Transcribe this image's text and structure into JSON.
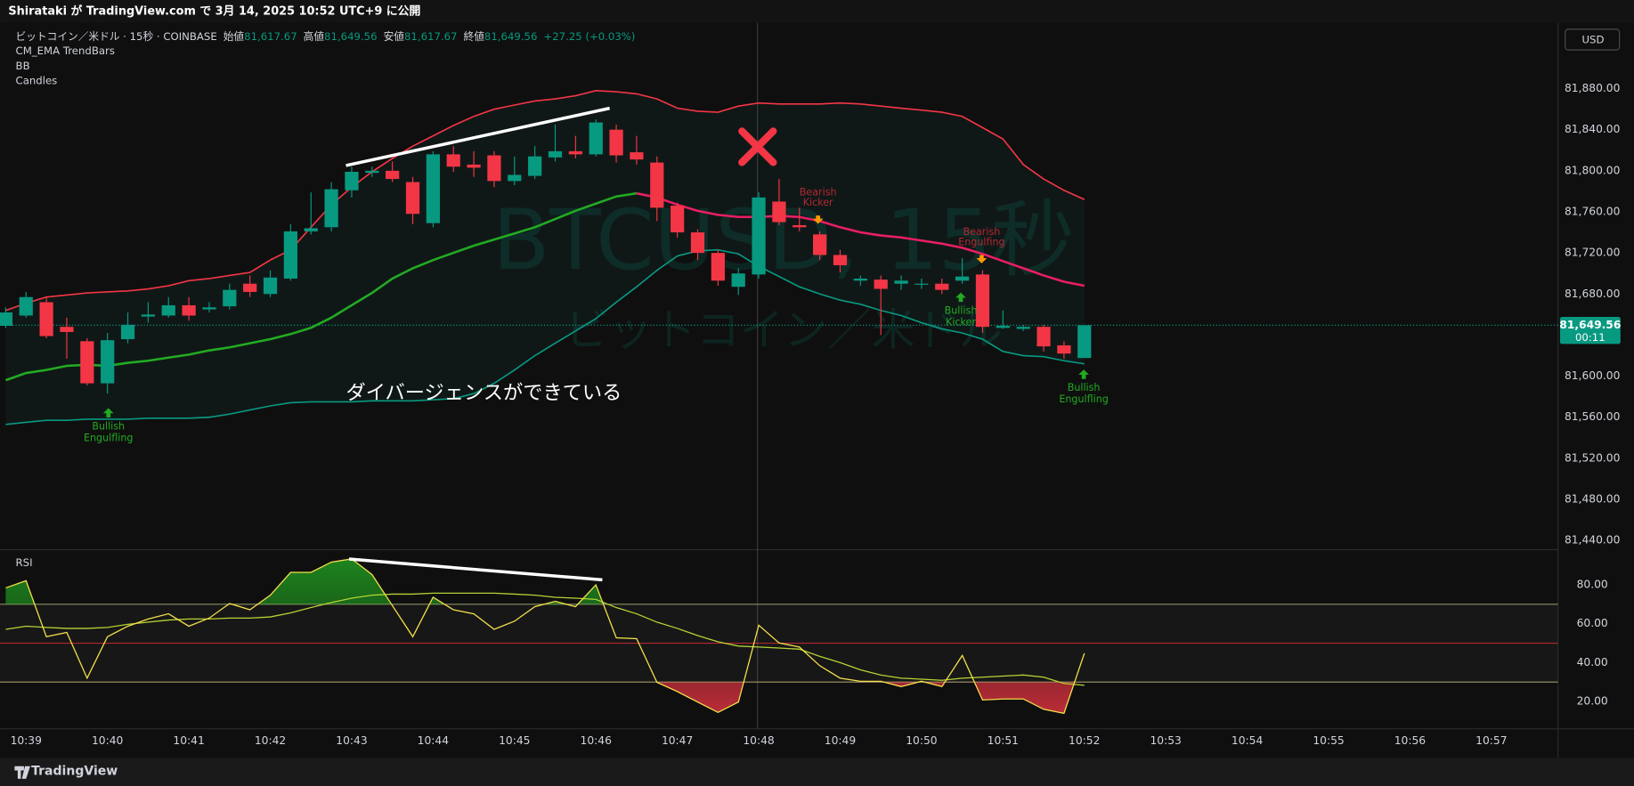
{
  "header": {
    "publish": "Shirataki が TradingView.com で 3月 14, 2025 10:52 UTC+9 に公開",
    "symbol": "ビットコイン／米ドル · 15秒 · COINBASE",
    "ohlc": [
      [
        "始値",
        "81,617.67"
      ],
      [
        "高値",
        "81,649.56"
      ],
      [
        "安値",
        "81,617.67"
      ],
      [
        "終値",
        "81,649.56"
      ]
    ],
    "change": "+27.25 (+0.03%)",
    "indicators": [
      "CM_EMA TrendBars",
      "BB",
      "Candles"
    ],
    "currency": "USD",
    "brand": "TradingView"
  },
  "chart_data": [
    {
      "type": "candlestick",
      "watermark": [
        "BTCUSD, 15秒",
        "ビットコイン／米ドル"
      ],
      "time_labels": [
        "10:39",
        "10:40",
        "10:41",
        "10:42",
        "10:43",
        "10:44",
        "10:45",
        "10:46",
        "10:47",
        "10:48",
        "10:49",
        "10:50",
        "10:51",
        "10:52",
        "10:53",
        "10:54",
        "10:55",
        "10:56",
        "10:57"
      ],
      "open": [
        81649,
        81659,
        81672,
        81648,
        81634,
        81593,
        81636,
        81658,
        81659,
        81669,
        81665,
        81668,
        81690,
        81680,
        81695,
        81741,
        81745,
        81781,
        81798,
        81800,
        81789,
        81749,
        81816,
        81806,
        81815,
        81790,
        81795,
        81813,
        81819,
        81816,
        81840,
        81818,
        81808,
        81766,
        81740,
        81720,
        81687,
        81699,
        81770,
        81747,
        81738,
        81718,
        81693,
        81694,
        81690,
        81689,
        81690,
        81693,
        81699,
        81647,
        81646,
        81648,
        81630,
        81617.67
      ],
      "high": [
        81667,
        81682,
        81677,
        81657,
        81637,
        81642,
        81662,
        81672,
        81677,
        81677,
        81672,
        81690,
        81698,
        81703,
        81748,
        81779,
        81789,
        81804,
        81804,
        81809,
        81794,
        81819,
        81824,
        81819,
        81819,
        81814,
        81824,
        81845,
        81834,
        81850,
        81845,
        81834,
        81814,
        81769,
        81743,
        81723,
        81705,
        81779,
        81792,
        81764,
        81741,
        81723,
        81698,
        81698,
        81698,
        81695,
        81695,
        81715,
        81703,
        81664,
        81650,
        81650,
        81634,
        81649.56
      ],
      "low": [
        81647,
        81657,
        81637,
        81617,
        81591,
        81583,
        81632,
        81652,
        81657,
        81654,
        81662,
        81665,
        81677,
        81677,
        81693,
        81738,
        81741,
        81774,
        81794,
        81789,
        81748,
        81745,
        81799,
        81794,
        81784,
        81786,
        81792,
        81809,
        81812,
        81814,
        81808,
        81806,
        81751,
        81735,
        81713,
        81688,
        81679,
        81695,
        81747,
        81741,
        81713,
        81701,
        81688,
        81640,
        81684,
        81685,
        81680,
        81690,
        81642,
        81646,
        81644,
        81624,
        81617,
        81617.67
      ],
      "close": [
        81662,
        81677,
        81639,
        81643,
        81593,
        81635,
        81650,
        81660,
        81669,
        81659,
        81667,
        81684,
        81682,
        81696,
        81741,
        81744,
        81782,
        81799,
        81800,
        81792,
        81758,
        81816,
        81804,
        81803,
        81790,
        81796,
        81814,
        81819,
        81816,
        81847,
        81815,
        81811,
        81764,
        81740,
        81720,
        81693,
        81700,
        81774,
        81750,
        81745,
        81718,
        81708,
        81695,
        81685,
        81693,
        81690,
        81684,
        81697,
        81648,
        81649,
        81648,
        81629,
        81622,
        81649.56
      ],
      "up_color": "#089981",
      "down_color": "#f23645",
      "series": [
        {
          "color": "#f23645",
          "values": [
            81664,
            81671,
            81677,
            81679,
            81681,
            81682,
            81683,
            81685,
            81688,
            81693,
            81695,
            81698,
            81701,
            81713,
            81723,
            81745,
            81767,
            81784,
            81799,
            81812,
            81824,
            81834,
            81844,
            81853,
            81860,
            81864,
            81868,
            81870,
            81873,
            81878,
            81877,
            81875,
            81870,
            81861,
            81858,
            81857,
            81863,
            81866,
            81865,
            81865,
            81865,
            81866,
            81865,
            81863,
            81861,
            81859,
            81857,
            81853,
            81842,
            81831,
            81806,
            81792,
            81781,
            81772
          ]
        },
        {
          "color": "#089981",
          "values": [
            81553,
            81555,
            81557,
            81557,
            81558,
            81558,
            81558,
            81559,
            81559,
            81559,
            81560,
            81563,
            81567,
            81571,
            81574,
            81575,
            81575,
            81575,
            81576,
            81576,
            81576,
            81577,
            81578,
            81583,
            81593,
            81606,
            81620,
            81632,
            81644,
            81656,
            81672,
            81687,
            81703,
            81717,
            81722,
            81723,
            81719,
            81707,
            81697,
            81687,
            81680,
            81674,
            81670,
            81664,
            81659,
            81652,
            81646,
            81642,
            81636,
            81624,
            81620,
            81619,
            81615,
            81612
          ]
        },
        {
          "color": "#22ab22",
          "values": [
            81596,
            81603,
            81606,
            81610,
            81611,
            81610,
            81613,
            81615,
            81618,
            81621,
            81625,
            81628,
            81632,
            81636,
            81641,
            81647,
            81657,
            81669,
            81681,
            81695,
            81705,
            81713,
            81720,
            81727,
            81733,
            81739,
            81745,
            81753,
            81761,
            81768,
            81775,
            81778,
            null,
            null,
            null,
            null,
            null,
            null,
            null,
            null,
            null,
            null,
            null,
            null,
            null,
            null,
            null,
            null,
            null,
            null,
            null,
            null,
            null,
            null
          ]
        },
        {
          "color": "#e91e63",
          "values": [
            null,
            null,
            null,
            null,
            null,
            null,
            null,
            null,
            null,
            null,
            null,
            null,
            null,
            null,
            null,
            null,
            null,
            null,
            null,
            null,
            null,
            null,
            null,
            null,
            null,
            null,
            null,
            null,
            null,
            null,
            null,
            81778,
            81774,
            81767,
            81761,
            81757,
            81755,
            81755,
            81756,
            81755,
            81751,
            81745,
            81740,
            81737,
            81735,
            81732,
            81729,
            81725,
            81719,
            81712,
            81705,
            81698,
            81692,
            81688
          ]
        }
      ],
      "ylim": [
        81432,
        81944
      ],
      "yticks": [
        {
          "value": 81440,
          "label": "81,440.00"
        },
        {
          "value": 81480,
          "label": "81,480.00"
        },
        {
          "value": 81520,
          "label": "81,520.00"
        },
        {
          "value": 81560,
          "label": "81,560.00"
        },
        {
          "value": 81600,
          "label": "81,600.00"
        },
        {
          "value": 81680,
          "label": "81,680.00"
        },
        {
          "value": 81720,
          "label": "81,720.00"
        },
        {
          "value": 81760,
          "label": "81,760.00"
        },
        {
          "value": 81800,
          "label": "81,800.00"
        },
        {
          "value": 81840,
          "label": "81,840.00"
        },
        {
          "value": 81880,
          "label": "81,880.00"
        }
      ],
      "grid": false,
      "last_price": {
        "value": 81649.56,
        "label": "81,649.56",
        "countdown": "00:11"
      },
      "annotation": "ダイバージェンスができている",
      "signals": [
        {
          "lines": [
            "Bullish",
            "Engulfling"
          ],
          "color": "#22ab22"
        },
        {
          "lines": [
            "Bearish",
            "Kicker"
          ],
          "color": "#b22833"
        },
        {
          "lines": [
            "Bearish",
            "Engulfing"
          ],
          "color": "#b22833"
        },
        {
          "lines": [
            "Bullish",
            "Kicker"
          ],
          "color": "#22ab22"
        },
        {
          "lines": [
            "Bullish",
            "Engulfling"
          ],
          "color": "#22ab22"
        }
      ]
    },
    {
      "type": "line",
      "title": "RSI",
      "series": [
        {
          "color": "#f5e04a",
          "values": [
            78.4,
            82.1,
            53.3,
            55.5,
            32,
            53.3,
            58.7,
            62.4,
            65.1,
            58.7,
            62.9,
            70.4,
            67.2,
            74.7,
            86.4,
            86.4,
            91.7,
            93.3,
            85.3,
            69.3,
            53.3,
            73.6,
            67.2,
            65.1,
            57.1,
            61.3,
            68.8,
            71.5,
            68.8,
            80,
            52.8,
            52.3,
            29.9,
            25.1,
            19.7,
            14.4,
            19.7,
            59.2,
            50.1,
            48,
            38.4,
            32,
            30.4,
            30.4,
            27.7,
            30.4,
            27.7,
            43.7,
            20.8,
            21.3,
            21.3,
            16,
            13.9,
            44.8
          ]
        },
        {
          "color": "#b5d334",
          "values": [
            57.1,
            58.7,
            58.1,
            57.6,
            57.6,
            58.1,
            59.7,
            60.8,
            61.9,
            62.4,
            62.4,
            62.9,
            62.9,
            63.5,
            65.6,
            68.3,
            70.9,
            73.1,
            74.7,
            75.2,
            75.2,
            75.7,
            75.7,
            75.7,
            75.7,
            75.2,
            74.7,
            73.6,
            73.1,
            72.5,
            68.3,
            65.1,
            60.8,
            57.6,
            53.9,
            50.7,
            48.5,
            48,
            47.5,
            46.9,
            43.2,
            40,
            36.3,
            33.6,
            32,
            31.5,
            30.9,
            32,
            32.5,
            33.1,
            33.6,
            32.5,
            29.3,
            28.3
          ]
        }
      ],
      "levels": [
        {
          "value": 70,
          "color": "#8e8e62"
        },
        {
          "value": 50,
          "color": "#b22833"
        },
        {
          "value": 30,
          "color": "#8e8e62"
        }
      ],
      "ylim": [
        6,
        97
      ],
      "yticks": [
        {
          "value": 20,
          "label": "20.00"
        },
        {
          "value": 40,
          "label": "40.00"
        },
        {
          "value": 60,
          "label": "60.00"
        },
        {
          "value": 80,
          "label": "80.00"
        }
      ]
    }
  ]
}
